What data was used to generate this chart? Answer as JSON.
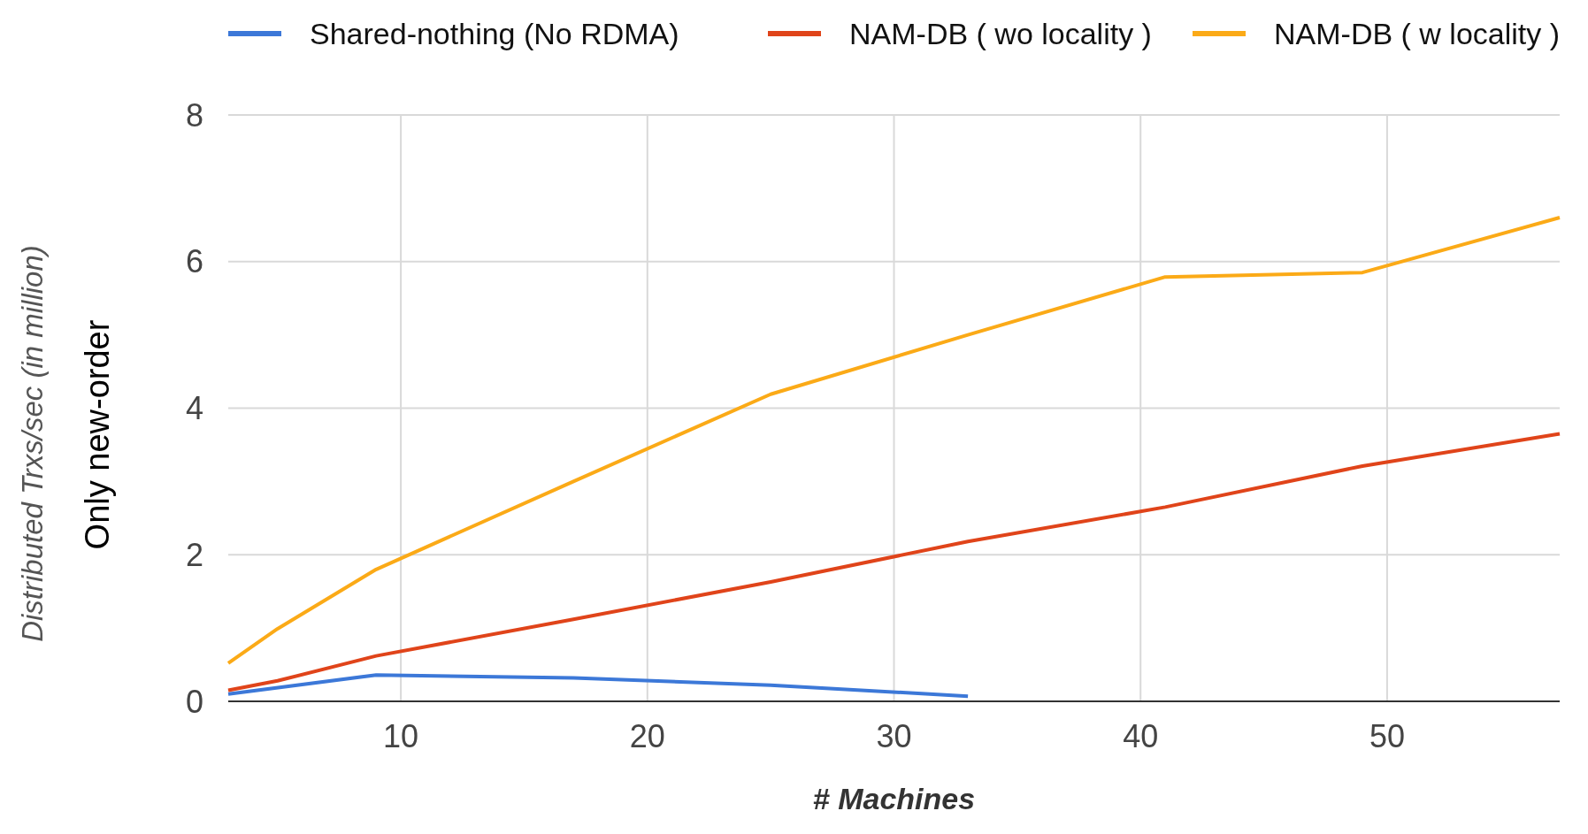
{
  "chart_data": {
    "type": "line",
    "xlabel": "# Machines",
    "ylabel": "Distributed Trxs/sec (in million)",
    "annotations": [
      "Only new-order"
    ],
    "xlim": [
      3,
      57
    ],
    "xticks": [
      10,
      20,
      30,
      40,
      50
    ],
    "ylim": [
      0,
      8
    ],
    "yticks": [
      0,
      2,
      4,
      6,
      8
    ],
    "grid": true,
    "legend": "top",
    "line_style": "solid",
    "marker": "none",
    "series": [
      {
        "name": "Shared-nothing (No RDMA)",
        "color": "#3c78d8",
        "x": [
          3,
          9,
          17,
          25,
          33
        ],
        "values": [
          0.1,
          0.36,
          0.32,
          0.22,
          0.07
        ]
      },
      {
        "name": "NAM-DB ( wo locality )",
        "color": "#e0441a",
        "x": [
          3,
          5,
          9,
          17,
          25,
          33,
          41,
          49,
          57
        ],
        "values": [
          0.15,
          0.28,
          0.62,
          1.12,
          1.63,
          2.18,
          2.65,
          3.21,
          3.65
        ]
      },
      {
        "name": "NAM-DB ( w locality )",
        "color": "#fbaa17",
        "x": [
          3,
          5,
          9,
          17,
          25,
          33,
          41,
          49,
          57
        ],
        "values": [
          0.52,
          0.99,
          1.8,
          3.0,
          4.19,
          5.0,
          5.79,
          5.85,
          6.6
        ]
      }
    ]
  }
}
